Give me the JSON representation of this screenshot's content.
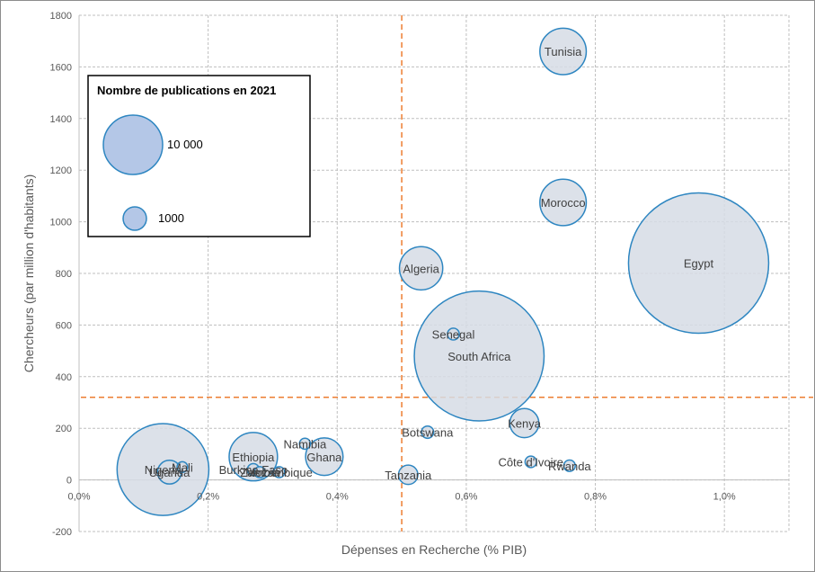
{
  "chart_data": {
    "type": "scatter",
    "subtype": "bubble",
    "title": "",
    "xlabel": "Dépenses en Recherche (% PIB)",
    "ylabel": "Chercheurs (par million d'habitants)",
    "xlim": [
      0.0,
      1.1
    ],
    "ylim": [
      -200,
      1800
    ],
    "x_ticks": [
      0.0,
      0.2,
      0.4,
      0.6,
      0.8,
      1.0
    ],
    "x_tick_labels": [
      "0,0%",
      "0,2%",
      "0,4%",
      "0,6%",
      "0,8%",
      "1,0%"
    ],
    "y_ticks": [
      -200,
      0,
      200,
      400,
      600,
      800,
      1000,
      1200,
      1400,
      1600,
      1800
    ],
    "y_tick_labels": [
      "-200",
      "0",
      "200",
      "400",
      "600",
      "800",
      "1000",
      "1200",
      "1400",
      "1600",
      "1800"
    ],
    "grid": true,
    "reference_lines": {
      "x": 0.5,
      "y": 320,
      "style": "dashed",
      "color": "#ed7d31"
    },
    "bubble_fill": "#d6dce5",
    "bubble_stroke": "#2e86c1",
    "series": [
      {
        "name": "Tunisia",
        "x": 0.75,
        "y": 1660,
        "publications": 2300
      },
      {
        "name": "Morocco",
        "x": 0.75,
        "y": 1075,
        "publications": 2300
      },
      {
        "name": "Egypt",
        "x": 0.96,
        "y": 840,
        "publications": 21000
      },
      {
        "name": "Algeria",
        "x": 0.53,
        "y": 820,
        "publications": 2000
      },
      {
        "name": "South Africa",
        "x": 0.62,
        "y": 480,
        "publications": 18000
      },
      {
        "name": "Senegal",
        "x": 0.58,
        "y": 565,
        "publications": 150
      },
      {
        "name": "Kenya",
        "x": 0.69,
        "y": 220,
        "publications": 900
      },
      {
        "name": "Botswana",
        "x": 0.54,
        "y": 185,
        "publications": 160
      },
      {
        "name": "Tanzania",
        "x": 0.51,
        "y": 20,
        "publications": 400
      },
      {
        "name": "Côte d'Ivoire",
        "x": 0.7,
        "y": 70,
        "publications": 140
      },
      {
        "name": "Rwanda",
        "x": 0.76,
        "y": 55,
        "publications": 140
      },
      {
        "name": "Namibia",
        "x": 0.35,
        "y": 140,
        "publications": 130
      },
      {
        "name": "Ghana",
        "x": 0.38,
        "y": 90,
        "publications": 1500
      },
      {
        "name": "Ethiopia",
        "x": 0.27,
        "y": 90,
        "publications": 2500
      },
      {
        "name": "Burkina Faso",
        "x": 0.27,
        "y": 40,
        "publications": 150
      },
      {
        "name": "Mozambique",
        "x": 0.31,
        "y": 30,
        "publications": 130
      },
      {
        "name": "Zambia",
        "x": 0.28,
        "y": 30,
        "publications": 130
      },
      {
        "name": "Mali",
        "x": 0.16,
        "y": 50,
        "publications": 120
      },
      {
        "name": "Nigeria",
        "x": 0.13,
        "y": 40,
        "publications": 9000
      },
      {
        "name": "Uganda",
        "x": 0.14,
        "y": 30,
        "publications": 600
      }
    ],
    "legend": {
      "title": "Nombre de publications en 2021",
      "placement": "top-left",
      "entries": [
        {
          "label": "10 000",
          "publications": 10000
        },
        {
          "label": "1000",
          "publications": 1000
        }
      ]
    }
  }
}
